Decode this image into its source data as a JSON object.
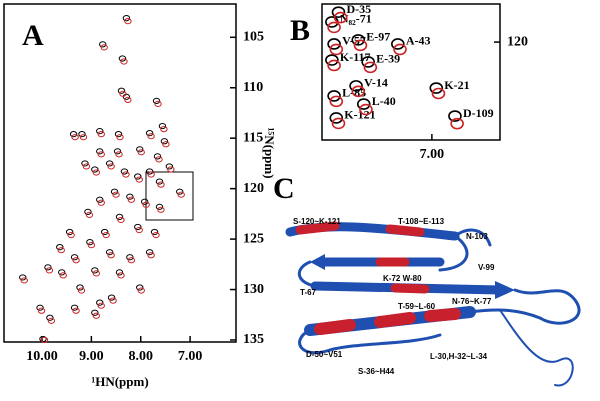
{
  "chart_data": [
    {
      "type": "scatter",
      "panel_label": "A",
      "xlabel": "¹HN(ppm)",
      "ylabel": "¹⁵N(ppm)",
      "xlim": [
        10.77,
        6.07
      ],
      "ylim": [
        101.7,
        135.2
      ],
      "xticks": [
        {
          "value": 10,
          "label": "10.00"
        },
        {
          "value": 9,
          "label": "9.00"
        },
        {
          "value": 8,
          "label": "8.00"
        },
        {
          "value": 7,
          "label": "7.00"
        }
      ],
      "yticks": [
        105,
        110,
        115,
        120,
        125,
        130,
        135
      ],
      "series": [
        {
          "color": "#000000",
          "x": [
            8.29,
            8.77,
            8.37,
            8.39,
            8.29,
            7.68,
            9.36,
            9.19,
            8.83,
            8.45,
            7.82,
            7.56,
            7.52,
            8.83,
            8.47,
            8.02,
            7.66,
            9.13,
            8.93,
            8.63,
            8.33,
            8.06,
            7.82,
            7.62,
            7.42,
            7.21,
            8.53,
            8.22,
            7.92,
            7.62,
            8.83,
            9.07,
            8.43,
            8.06,
            7.72,
            8.73,
            9.03,
            9.44,
            9.64,
            9.34,
            8.63,
            8.22,
            7.82,
            9.88,
            9.6,
            8.93,
            8.43,
            8.02,
            9.23,
            8.59,
            10.39,
            10.04,
            9.84,
            9.34,
            8.83,
            9.98,
            8.93
          ],
          "y": [
            103.1,
            105.7,
            107.1,
            110.3,
            110.9,
            111.3,
            114.6,
            114.6,
            114.3,
            114.6,
            114.5,
            113.8,
            115.3,
            116.3,
            116.3,
            116.1,
            116.8,
            117.5,
            118.1,
            117.5,
            118.3,
            118.8,
            118.3,
            119.3,
            117.8,
            120.3,
            120.3,
            120.8,
            121.3,
            121.8,
            121.1,
            122.3,
            122.8,
            123.8,
            124.3,
            124.3,
            125.3,
            124.3,
            125.8,
            126.8,
            126.3,
            126.8,
            126.3,
            127.8,
            128.3,
            128.1,
            128.3,
            129.8,
            129.8,
            130.8,
            128.8,
            131.8,
            132.8,
            131.8,
            131.3,
            134.9,
            132.3
          ]
        },
        {
          "color": "#cc2222",
          "x": [
            8.26,
            8.74,
            8.34,
            8.36,
            8.26,
            7.65,
            9.33,
            9.16,
            8.8,
            8.42,
            7.79,
            7.53,
            7.49,
            8.8,
            8.44,
            7.99,
            7.63,
            9.1,
            8.9,
            8.6,
            8.3,
            8.03,
            7.79,
            7.59,
            7.39,
            7.18,
            8.5,
            8.19,
            7.89,
            7.59,
            8.8,
            9.04,
            8.4,
            8.03,
            7.69,
            8.7,
            9.0,
            9.41,
            9.61,
            9.31,
            8.6,
            8.19,
            7.79,
            9.85,
            9.57,
            8.9,
            8.4,
            7.99,
            9.2,
            8.56,
            10.36,
            10.01,
            9.81,
            9.31,
            8.8,
            9.95,
            8.9
          ],
          "y": [
            103.4,
            106.0,
            107.4,
            110.6,
            111.2,
            111.6,
            114.9,
            114.9,
            114.6,
            114.9,
            114.8,
            114.1,
            115.6,
            116.6,
            116.6,
            116.4,
            117.1,
            117.8,
            118.4,
            117.8,
            118.6,
            119.1,
            118.6,
            119.6,
            118.1,
            120.6,
            120.6,
            121.1,
            121.6,
            122.1,
            121.4,
            122.6,
            123.1,
            124.1,
            124.6,
            124.6,
            125.6,
            124.6,
            126.1,
            127.1,
            126.6,
            127.1,
            126.6,
            128.1,
            128.6,
            128.4,
            128.6,
            130.1,
            130.1,
            131.1,
            129.1,
            132.1,
            133.1,
            132.1,
            131.6,
            135.0,
            132.6
          ]
        }
      ]
    },
    {
      "type": "scatter",
      "panel_label": "B",
      "xlim": [
        8.0,
        6.38
      ],
      "ylim": [
        118.6,
        123.6
      ],
      "xticks": [
        {
          "value": 7,
          "label": "7.00"
        }
      ],
      "yticks": [
        120
      ],
      "series": [
        {
          "color": "#000000",
          "x": [
            7.85,
            7.91,
            7.89,
            7.67,
            7.31,
            7.91,
            7.58,
            7.69,
            7.89,
            6.96,
            7.62,
            6.79,
            7.87
          ],
          "y": [
            118.9,
            119.26,
            120.07,
            119.92,
            120.07,
            120.66,
            120.73,
            121.61,
            121.98,
            121.69,
            122.28,
            122.72,
            122.79
          ],
          "labels": [
            "D-35",
            "N₈₂-71",
            "V-57",
            "E-97",
            "A-43",
            "K-117",
            "E-39",
            "V-14",
            "L-85",
            "K-21",
            "L-40",
            "D-109",
            "K-121"
          ]
        },
        {
          "color": "#cc2222",
          "x": [
            7.83,
            7.89,
            7.87,
            7.65,
            7.29,
            7.89,
            7.56,
            7.67,
            7.87,
            6.94,
            7.6,
            6.77,
            7.85
          ],
          "y": [
            119.1,
            119.46,
            120.27,
            120.12,
            120.27,
            120.86,
            120.93,
            121.81,
            122.18,
            121.89,
            122.48,
            123.0,
            122.99
          ]
        }
      ]
    }
  ],
  "panel_c": {
    "panel_label": "C",
    "labels": [
      "S-120~K-121",
      "T-108~E-113",
      "N-103",
      "V-99",
      "K-72 W-80",
      "T-67",
      "T-59~L-60",
      "N-76~K-77",
      "D-50~V51",
      "S-36~H44",
      "L-30,H-32~L-34"
    ]
  }
}
